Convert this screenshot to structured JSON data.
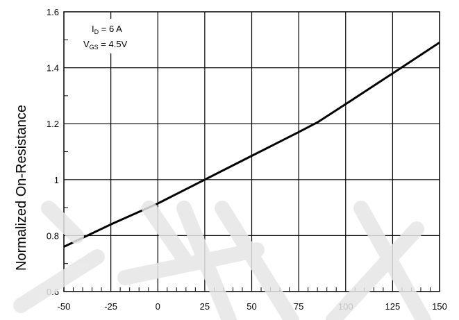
{
  "chart_data": {
    "type": "line",
    "title": "",
    "xlabel": "",
    "ylabel": "Normalized On-Resistance",
    "xlim": [
      -50,
      150
    ],
    "ylim": [
      0.6,
      1.6
    ],
    "x_ticks": [
      -50,
      -25,
      0,
      25,
      50,
      75,
      100,
      125,
      150
    ],
    "y_ticks": [
      0.6,
      0.8,
      1,
      1.2,
      1.4,
      1.6
    ],
    "grid": true,
    "annotations": [
      {
        "main": "I",
        "sub": "D",
        "rest": " = 6 A"
      },
      {
        "main": "V",
        "sub": "GS",
        "rest": " = 4.5V"
      }
    ],
    "series": [
      {
        "x": [
          -50,
          -25,
          0,
          25,
          50,
          75,
          85,
          100,
          125,
          150
        ],
        "y": [
          0.76,
          0.84,
          0.915,
          1.0,
          1.085,
          1.17,
          1.205,
          1.27,
          1.38,
          1.49
        ]
      }
    ]
  }
}
